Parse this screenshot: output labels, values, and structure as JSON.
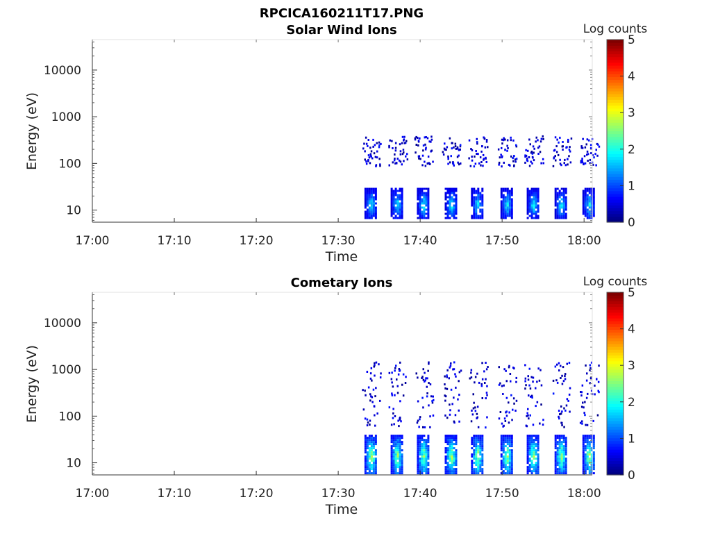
{
  "figure_title": "RPCICA160211T17.PNG",
  "chart_data": [
    {
      "type": "heatmap",
      "title": "Solar Wind Ions",
      "xlabel": "Time",
      "ylabel": "Energy (eV)",
      "x_ticks": [
        "17:00",
        "17:10",
        "17:20",
        "17:30",
        "17:40",
        "17:50",
        "18:00"
      ],
      "x_range_minutes": [
        0,
        61
      ],
      "y_scale": "log",
      "y_ticks": [
        "10",
        "100",
        "1000",
        "10000"
      ],
      "y_range": [
        5.5,
        45000
      ],
      "colorbar": {
        "label": "Log counts",
        "range": [
          0,
          5
        ],
        "ticks": [
          "0",
          "1",
          "2",
          "3",
          "4",
          "5"
        ],
        "colormap": "jet"
      },
      "grid": false,
      "bursts_start_minute": [
        33.2,
        36.4,
        39.6,
        43.0,
        46.2,
        49.8,
        53.0,
        56.4,
        59.8
      ],
      "low_energy_band_eV": [
        7,
        30
      ],
      "low_energy_max_log_counts": 2.1,
      "high_energy_band_eV": [
        90,
        400
      ],
      "high_energy_max_log_counts": 1.0
    },
    {
      "type": "heatmap",
      "title": "Cometary Ions",
      "xlabel": "Time",
      "ylabel": "Energy (eV)",
      "x_ticks": [
        "17:00",
        "17:10",
        "17:20",
        "17:30",
        "17:40",
        "17:50",
        "18:00"
      ],
      "x_range_minutes": [
        0,
        61
      ],
      "y_scale": "log",
      "y_ticks": [
        "10",
        "100",
        "1000",
        "10000"
      ],
      "y_range": [
        5.5,
        45000
      ],
      "colorbar": {
        "label": "Log counts",
        "range": [
          0,
          5
        ],
        "ticks": [
          "0",
          "1",
          "2",
          "3",
          "4",
          "5"
        ],
        "colormap": "jet"
      },
      "grid": false,
      "bursts_start_minute": [
        33.2,
        36.4,
        39.6,
        43.0,
        46.2,
        49.8,
        53.0,
        56.4,
        59.8
      ],
      "low_energy_band_eV": [
        6,
        40
      ],
      "low_energy_max_log_counts": 3.0,
      "high_energy_band_eV": [
        60,
        1500
      ],
      "high_energy_max_log_counts": 1.0
    }
  ]
}
